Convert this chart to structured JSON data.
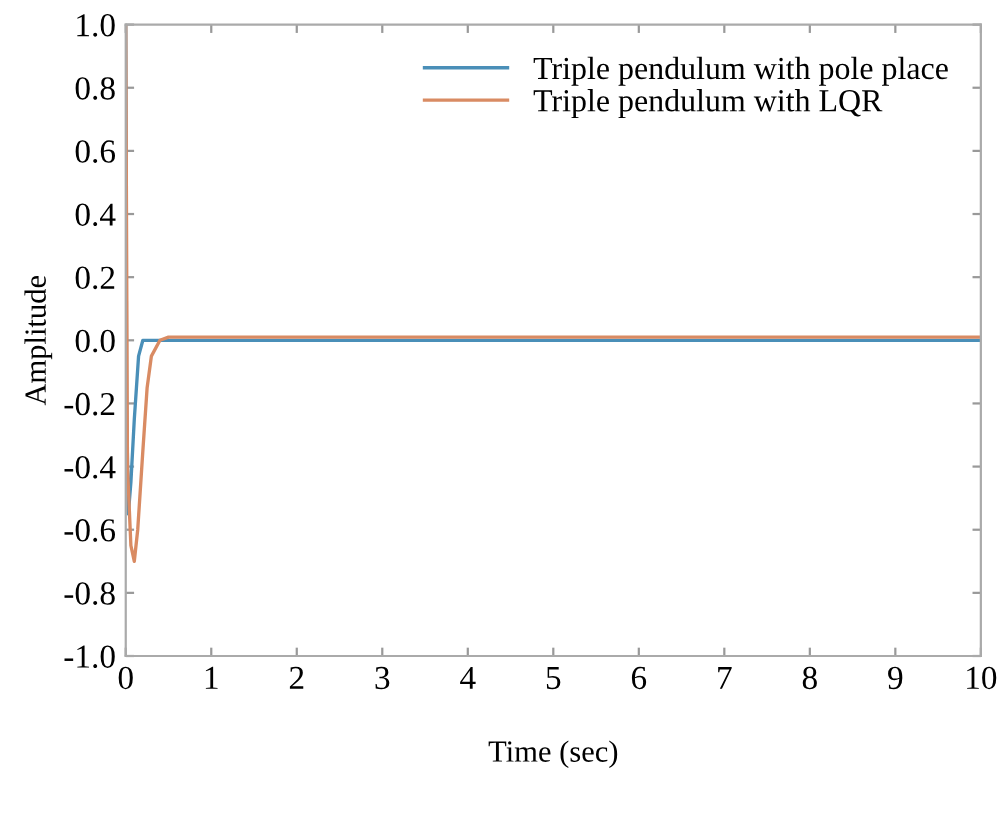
{
  "chart_data": {
    "type": "line",
    "xlabel": "Time (sec)",
    "ylabel": "Amplitude",
    "xlim": [
      0,
      10
    ],
    "xticks": [
      0,
      1,
      2,
      3,
      4,
      5,
      6,
      7,
      8,
      9,
      10
    ],
    "ylim": [
      -1.0,
      1.0
    ],
    "yticks": [
      {
        "value": -1.0,
        "label": "-1.0"
      },
      {
        "value": -0.8,
        "label": "-0.8"
      },
      {
        "value": -0.6,
        "label": "-0.6"
      },
      {
        "value": -0.4,
        "label": "-0.4"
      },
      {
        "value": -0.2,
        "label": "-0.2"
      },
      {
        "value": 0.0,
        "label": "0.0"
      },
      {
        "value": 0.2,
        "label": "0.2"
      },
      {
        "value": 0.4,
        "label": "0.4"
      },
      {
        "value": 0.6,
        "label": "0.6"
      },
      {
        "value": 0.8,
        "label": "0.8"
      },
      {
        "value": 1.0,
        "label": "1.0"
      }
    ],
    "grid": false,
    "legend": "top right",
    "series": [
      {
        "name": "Triple pendulum with pole place",
        "color": "#4a8fb8",
        "x": [
          0,
          0.01,
          0.03,
          0.06,
          0.1,
          0.15,
          0.2,
          0.3,
          0.5,
          1,
          2,
          4,
          6,
          8,
          10
        ],
        "values": [
          1.0,
          -0.2,
          -0.55,
          -0.45,
          -0.25,
          -0.05,
          0,
          0,
          0,
          0,
          0,
          0,
          0,
          0,
          0
        ]
      },
      {
        "name": "Triple pendulum with LQR",
        "color": "#d98b63",
        "x": [
          0,
          0.02,
          0.06,
          0.1,
          0.14,
          0.2,
          0.25,
          0.3,
          0.4,
          0.5,
          0.6,
          1,
          2,
          4,
          6,
          8,
          10
        ],
        "values": [
          1.0,
          -0.4,
          -0.65,
          -0.7,
          -0.6,
          -0.35,
          -0.15,
          -0.05,
          0,
          0.01,
          0.01,
          0.01,
          0.01,
          0.01,
          0.01,
          0.01,
          0.01
        ]
      }
    ]
  }
}
